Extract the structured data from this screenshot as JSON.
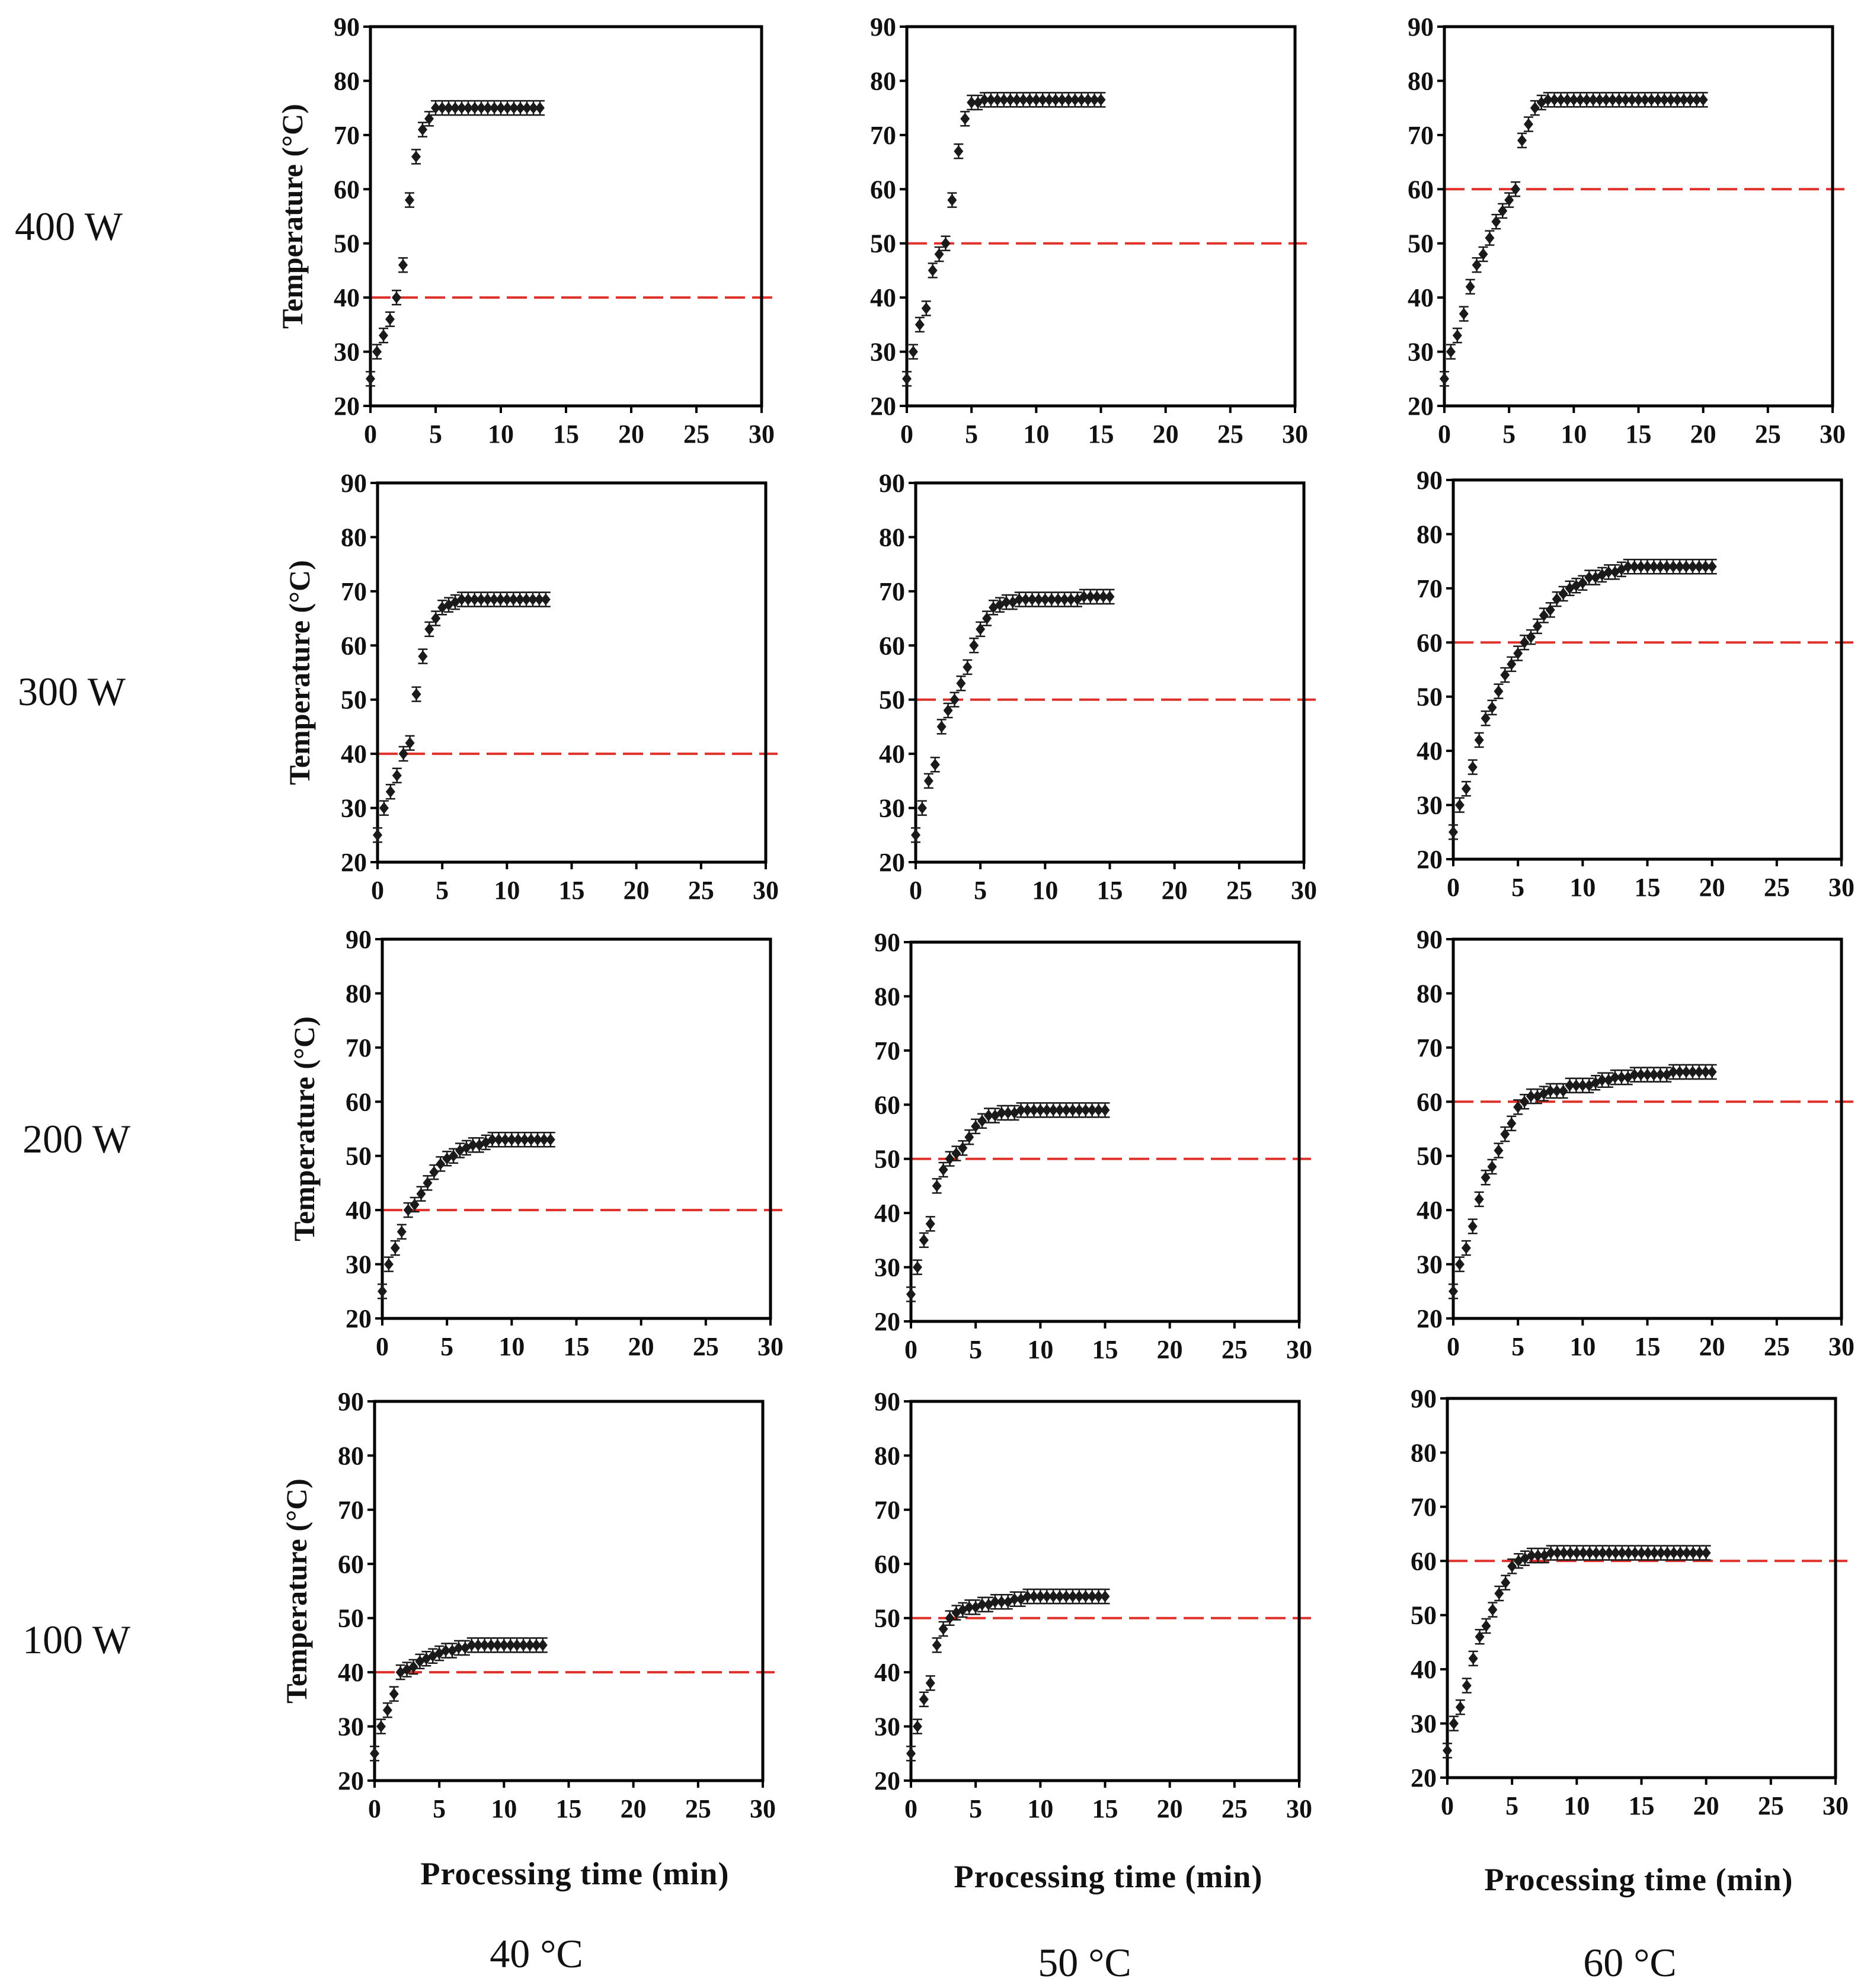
{
  "figure": {
    "row_labels": [
      "400 W",
      "300 W",
      "200 W",
      "100 W"
    ],
    "column_labels": [
      "40 °C",
      "50 °C",
      "60 °C"
    ],
    "x_axis_label": "Processing time (min)",
    "y_axis_label": "Temperature (°C)",
    "colors": {
      "marker": "#1a1a1a",
      "threshold_line": "#e0302a",
      "frame": "#000000"
    }
  },
  "chart_data": [
    {
      "type": "scatter",
      "row": "400 W",
      "column": "40 °C",
      "xlabel": "",
      "ylabel": "Temperature (°C)",
      "xlim": [
        0,
        30
      ],
      "ylim": [
        20,
        90
      ],
      "xticks": [
        0,
        5,
        10,
        15,
        20,
        25,
        30
      ],
      "yticks": [
        20,
        30,
        40,
        50,
        60,
        70,
        80,
        90
      ],
      "threshold": 40,
      "x": [
        0,
        0.5,
        1,
        1.5,
        2,
        2.5,
        3,
        3.5,
        4,
        4.5,
        5,
        5.5,
        6,
        6.5,
        7,
        7.5,
        8,
        8.5,
        9,
        9.5,
        10,
        10.5,
        11,
        11.5,
        12,
        12.5,
        13
      ],
      "y": [
        25,
        30,
        33,
        36,
        40,
        46,
        58,
        66,
        71,
        73,
        75,
        75,
        75,
        75,
        75,
        75,
        75,
        75,
        75,
        75,
        75,
        75,
        75,
        75,
        75,
        75,
        75
      ]
    },
    {
      "type": "scatter",
      "row": "400 W",
      "column": "50 °C",
      "xlabel": "",
      "ylabel": "",
      "xlim": [
        0,
        30
      ],
      "ylim": [
        20,
        90
      ],
      "xticks": [
        0,
        5,
        10,
        15,
        20,
        25,
        30
      ],
      "yticks": [
        20,
        30,
        40,
        50,
        60,
        70,
        80,
        90
      ],
      "threshold": 50,
      "x": [
        0,
        0.5,
        1,
        1.5,
        2,
        2.5,
        3,
        3.5,
        4,
        4.5,
        5,
        5.5,
        6,
        6.5,
        7,
        7.5,
        8,
        8.5,
        9,
        9.5,
        10,
        10.5,
        11,
        11.5,
        12,
        12.5,
        13,
        13.5,
        14,
        14.5,
        15
      ],
      "y": [
        25,
        30,
        35,
        38,
        45,
        48,
        50,
        58,
        67,
        73,
        76,
        76,
        76.5,
        76.5,
        76.5,
        76.5,
        76.5,
        76.5,
        76.5,
        76.5,
        76.5,
        76.5,
        76.5,
        76.5,
        76.5,
        76.5,
        76.5,
        76.5,
        76.5,
        76.5,
        76.5
      ]
    },
    {
      "type": "scatter",
      "row": "400 W",
      "column": "60 °C",
      "xlabel": "",
      "ylabel": "",
      "xlim": [
        0,
        30
      ],
      "ylim": [
        20,
        90
      ],
      "xticks": [
        0,
        5,
        10,
        15,
        20,
        25,
        30
      ],
      "yticks": [
        20,
        30,
        40,
        50,
        60,
        70,
        80,
        90
      ],
      "threshold": 60,
      "x": [
        0,
        0.5,
        1,
        1.5,
        2,
        2.5,
        3,
        3.5,
        4,
        4.5,
        5,
        5.5,
        6,
        6.5,
        7,
        7.5,
        8,
        8.5,
        9,
        9.5,
        10,
        10.5,
        11,
        11.5,
        12,
        12.5,
        13,
        13.5,
        14,
        14.5,
        15,
        15.5,
        16,
        16.5,
        17,
        17.5,
        18,
        18.5,
        19,
        19.5,
        20
      ],
      "y": [
        25,
        30,
        33,
        37,
        42,
        46,
        48,
        51,
        54,
        56,
        58,
        60,
        69,
        72,
        75,
        76,
        76.5,
        76.5,
        76.5,
        76.5,
        76.5,
        76.5,
        76.5,
        76.5,
        76.5,
        76.5,
        76.5,
        76.5,
        76.5,
        76.5,
        76.5,
        76.5,
        76.5,
        76.5,
        76.5,
        76.5,
        76.5,
        76.5,
        76.5,
        76.5,
        76.5
      ]
    },
    {
      "type": "scatter",
      "row": "300 W",
      "column": "40 °C",
      "xlabel": "",
      "ylabel": "Temperature (°C)",
      "xlim": [
        0,
        30
      ],
      "ylim": [
        20,
        90
      ],
      "xticks": [
        0,
        5,
        10,
        15,
        20,
        25,
        30
      ],
      "yticks": [
        20,
        30,
        40,
        50,
        60,
        70,
        80,
        90
      ],
      "threshold": 40,
      "x": [
        0,
        0.5,
        1,
        1.5,
        2,
        2.5,
        3,
        3.5,
        4,
        4.5,
        5,
        5.5,
        6,
        6.5,
        7,
        7.5,
        8,
        8.5,
        9,
        9.5,
        10,
        10.5,
        11,
        11.5,
        12,
        12.5,
        13
      ],
      "y": [
        25,
        30,
        33,
        36,
        40,
        42,
        51,
        58,
        63,
        65,
        67,
        67.5,
        68,
        68.5,
        68.5,
        68.5,
        68.5,
        68.5,
        68.5,
        68.5,
        68.5,
        68.5,
        68.5,
        68.5,
        68.5,
        68.5,
        68.5
      ]
    },
    {
      "type": "scatter",
      "row": "300 W",
      "column": "50 °C",
      "xlabel": "",
      "ylabel": "",
      "xlim": [
        0,
        30
      ],
      "ylim": [
        20,
        90
      ],
      "xticks": [
        0,
        5,
        10,
        15,
        20,
        25,
        30
      ],
      "yticks": [
        20,
        30,
        40,
        50,
        60,
        70,
        80,
        90
      ],
      "threshold": 50,
      "x": [
        0,
        0.5,
        1,
        1.5,
        2,
        2.5,
        3,
        3.5,
        4,
        4.5,
        5,
        5.5,
        6,
        6.5,
        7,
        7.5,
        8,
        8.5,
        9,
        9.5,
        10,
        10.5,
        11,
        11.5,
        12,
        12.5,
        13,
        13.5,
        14,
        14.5,
        15
      ],
      "y": [
        25,
        30,
        35,
        38,
        45,
        48,
        50,
        53,
        56,
        60,
        63,
        65,
        67,
        67.5,
        68,
        68,
        68.5,
        68.5,
        68.5,
        68.5,
        68.5,
        68.5,
        68.5,
        68.5,
        68.5,
        68.5,
        69,
        69,
        69,
        69,
        69
      ]
    },
    {
      "type": "scatter",
      "row": "300 W",
      "column": "60 °C",
      "xlabel": "",
      "ylabel": "",
      "xlim": [
        0,
        30
      ],
      "ylim": [
        20,
        90
      ],
      "xticks": [
        0,
        5,
        10,
        15,
        20,
        25,
        30
      ],
      "yticks": [
        20,
        30,
        40,
        50,
        60,
        70,
        80,
        90
      ],
      "threshold": 60,
      "x": [
        0,
        0.5,
        1,
        1.5,
        2,
        2.5,
        3,
        3.5,
        4,
        4.5,
        5,
        5.5,
        6,
        6.5,
        7,
        7.5,
        8,
        8.5,
        9,
        9.5,
        10,
        10.5,
        11,
        11.5,
        12,
        12.5,
        13,
        13.5,
        14,
        14.5,
        15,
        15.5,
        16,
        16.5,
        17,
        17.5,
        18,
        18.5,
        19,
        19.5,
        20
      ],
      "y": [
        25,
        30,
        33,
        37,
        42,
        46,
        48,
        51,
        54,
        56,
        58,
        60,
        61,
        63,
        65,
        66,
        68,
        69,
        70,
        70.5,
        71,
        72,
        72,
        72.5,
        73,
        73,
        73.5,
        74,
        74,
        74,
        74,
        74,
        74,
        74,
        74,
        74,
        74,
        74,
        74,
        74,
        74
      ]
    },
    {
      "type": "scatter",
      "row": "200 W",
      "column": "40 °C",
      "xlabel": "",
      "ylabel": "Temperature (°C)",
      "xlim": [
        0,
        30
      ],
      "ylim": [
        20,
        90
      ],
      "xticks": [
        0,
        5,
        10,
        15,
        20,
        25,
        30
      ],
      "yticks": [
        20,
        30,
        40,
        50,
        60,
        70,
        80,
        90
      ],
      "threshold": 40,
      "x": [
        0,
        0.5,
        1,
        1.5,
        2,
        2.5,
        3,
        3.5,
        4,
        4.5,
        5,
        5.5,
        6,
        6.5,
        7,
        7.5,
        8,
        8.5,
        9,
        9.5,
        10,
        10.5,
        11,
        11.5,
        12,
        12.5,
        13
      ],
      "y": [
        25,
        30,
        33,
        36,
        40,
        41,
        43,
        45,
        47,
        48.5,
        49.5,
        50,
        51,
        51.5,
        52,
        52,
        52.5,
        53,
        53,
        53,
        53,
        53,
        53,
        53,
        53,
        53,
        53
      ]
    },
    {
      "type": "scatter",
      "row": "200 W",
      "column": "50 °C",
      "xlabel": "",
      "ylabel": "",
      "xlim": [
        0,
        30
      ],
      "ylim": [
        20,
        90
      ],
      "xticks": [
        0,
        5,
        10,
        15,
        20,
        25,
        30
      ],
      "yticks": [
        20,
        30,
        40,
        50,
        60,
        70,
        80,
        90
      ],
      "threshold": 50,
      "x": [
        0,
        0.5,
        1,
        1.5,
        2,
        2.5,
        3,
        3.5,
        4,
        4.5,
        5,
        5.5,
        6,
        6.5,
        7,
        7.5,
        8,
        8.5,
        9,
        9.5,
        10,
        10.5,
        11,
        11.5,
        12,
        12.5,
        13,
        13.5,
        14,
        14.5,
        15
      ],
      "y": [
        25,
        30,
        35,
        38,
        45,
        48,
        50,
        51,
        52,
        54,
        56,
        57,
        58,
        58,
        58.5,
        58.5,
        58.5,
        59,
        59,
        59,
        59,
        59,
        59,
        59,
        59,
        59,
        59,
        59,
        59,
        59,
        59
      ]
    },
    {
      "type": "scatter",
      "row": "200 W",
      "column": "60 °C",
      "xlabel": "",
      "ylabel": "",
      "xlim": [
        0,
        30
      ],
      "ylim": [
        20,
        90
      ],
      "xticks": [
        0,
        5,
        10,
        15,
        20,
        25,
        30
      ],
      "yticks": [
        20,
        30,
        40,
        50,
        60,
        70,
        80,
        90
      ],
      "threshold": 60,
      "x": [
        0,
        0.5,
        1,
        1.5,
        2,
        2.5,
        3,
        3.5,
        4,
        4.5,
        5,
        5.5,
        6,
        6.5,
        7,
        7.5,
        8,
        8.5,
        9,
        9.5,
        10,
        10.5,
        11,
        11.5,
        12,
        12.5,
        13,
        13.5,
        14,
        14.5,
        15,
        15.5,
        16,
        16.5,
        17,
        17.5,
        18,
        18.5,
        19,
        19.5,
        20
      ],
      "y": [
        25,
        30,
        33,
        37,
        42,
        46,
        48,
        51,
        54,
        56,
        59,
        60,
        61,
        61,
        61.5,
        62,
        62,
        62,
        63,
        63,
        63,
        63,
        63.5,
        64,
        64,
        64.5,
        64.5,
        64.5,
        65,
        65,
        65,
        65,
        65,
        65,
        65.5,
        65.5,
        65.5,
        65.5,
        65.5,
        65.5,
        65.5
      ]
    },
    {
      "type": "scatter",
      "row": "100 W",
      "column": "40 °C",
      "xlabel": "Processing time (min)",
      "ylabel": "Temperature (°C)",
      "xlim": [
        0,
        30
      ],
      "ylim": [
        20,
        90
      ],
      "xticks": [
        0,
        5,
        10,
        15,
        20,
        25,
        30
      ],
      "yticks": [
        20,
        30,
        40,
        50,
        60,
        70,
        80,
        90
      ],
      "threshold": 40,
      "x": [
        0,
        0.5,
        1,
        1.5,
        2,
        2.5,
        3,
        3.5,
        4,
        4.5,
        5,
        5.5,
        6,
        6.5,
        7,
        7.5,
        8,
        8.5,
        9,
        9.5,
        10,
        10.5,
        11,
        11.5,
        12,
        12.5,
        13
      ],
      "y": [
        25,
        30,
        33,
        36,
        40,
        40.5,
        41,
        42,
        42.5,
        43,
        43.5,
        44,
        44,
        44.5,
        44.5,
        45,
        45,
        45,
        45,
        45,
        45,
        45,
        45,
        45,
        45,
        45,
        45
      ]
    },
    {
      "type": "scatter",
      "row": "100 W",
      "column": "50 °C",
      "xlabel": "Processing time (min)",
      "ylabel": "",
      "xlim": [
        0,
        30
      ],
      "ylim": [
        20,
        90
      ],
      "xticks": [
        0,
        5,
        10,
        15,
        20,
        25,
        30
      ],
      "yticks": [
        20,
        30,
        40,
        50,
        60,
        70,
        80,
        90
      ],
      "threshold": 50,
      "x": [
        0,
        0.5,
        1,
        1.5,
        2,
        2.5,
        3,
        3.5,
        4,
        4.5,
        5,
        5.5,
        6,
        6.5,
        7,
        7.5,
        8,
        8.5,
        9,
        9.5,
        10,
        10.5,
        11,
        11.5,
        12,
        12.5,
        13,
        13.5,
        14,
        14.5,
        15
      ],
      "y": [
        25,
        30,
        35,
        38,
        45,
        48,
        50,
        51,
        51.5,
        52,
        52,
        52.5,
        52.5,
        53,
        53,
        53,
        53.5,
        53.5,
        54,
        54,
        54,
        54,
        54,
        54,
        54,
        54,
        54,
        54,
        54,
        54,
        54
      ]
    },
    {
      "type": "scatter",
      "row": "100 W",
      "column": "60 °C",
      "xlabel": "Processing time (min)",
      "ylabel": "",
      "xlim": [
        0,
        30
      ],
      "ylim": [
        20,
        90
      ],
      "xticks": [
        0,
        5,
        10,
        15,
        20,
        25,
        30
      ],
      "yticks": [
        20,
        30,
        40,
        50,
        60,
        70,
        80,
        90
      ],
      "threshold": 60,
      "x": [
        0,
        0.5,
        1,
        1.5,
        2,
        2.5,
        3,
        3.5,
        4,
        4.5,
        5,
        5.5,
        6,
        6.5,
        7,
        7.5,
        8,
        8.5,
        9,
        9.5,
        10,
        10.5,
        11,
        11.5,
        12,
        12.5,
        13,
        13.5,
        14,
        14.5,
        15,
        15.5,
        16,
        16.5,
        17,
        17.5,
        18,
        18.5,
        19,
        19.5,
        20
      ],
      "y": [
        25,
        30,
        33,
        37,
        42,
        46,
        48,
        51,
        54,
        56,
        59,
        60,
        60.5,
        61,
        61,
        61,
        61.5,
        61.5,
        61.5,
        61.5,
        61.5,
        61.5,
        61.5,
        61.5,
        61.5,
        61.5,
        61.5,
        61.5,
        61.5,
        61.5,
        61.5,
        61.5,
        61.5,
        61.5,
        61.5,
        61.5,
        61.5,
        61.5,
        61.5,
        61.5,
        61.5
      ]
    }
  ]
}
